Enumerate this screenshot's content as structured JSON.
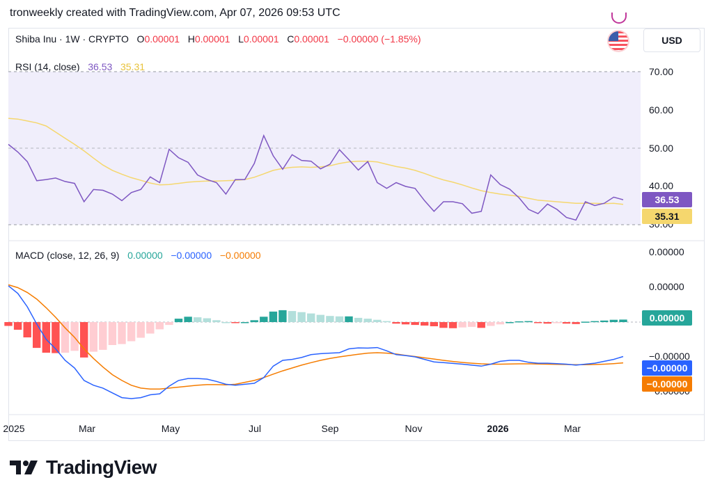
{
  "header": {
    "text": "tronweekly created with TradingView.com, Apr 07, 2026 09:53 UTC"
  },
  "symbol_line": {
    "name": "Shiba Inu · 1W · CRYPTO",
    "o_label": "O",
    "o_value": "0.00001",
    "h_label": "H",
    "h_value": "0.00001",
    "l_label": "L",
    "l_value": "0.00001",
    "c_label": "C",
    "c_value": "0.00001",
    "change": "−0.00000 (−1.85%)"
  },
  "currency_button": "USD",
  "rsi_legend": {
    "label": "RSI (14, close)",
    "rsi_value": "36.53",
    "ma_value": "35.31"
  },
  "macd_legend": {
    "label": "MACD (close, 12, 26, 9)",
    "hist_value": "0.00000",
    "macd_value": "−0.00000",
    "signal_value": "−0.00000"
  },
  "rsi_axis_ticks": [
    "70.00",
    "60.00",
    "50.00",
    "40.00",
    "30.00"
  ],
  "macd_axis_ticks": [
    "0.00000",
    "0.00000",
    "−0.00000",
    "−0.00000"
  ],
  "badges": {
    "rsi": "36.53",
    "rsi_ma": "35.31",
    "macd_hist": "0.00000",
    "macd_line": "−0.00000",
    "macd_signal": "−0.00000"
  },
  "x_axis_labels": [
    "2025",
    "Mar",
    "May",
    "Jul",
    "Sep",
    "Nov",
    "2026",
    "Mar"
  ],
  "logo_text": "TradingView",
  "colors": {
    "rsi_line": "#7e57c2",
    "rsi_ma": "#f5d76e",
    "rsi_band": "#f0eefb",
    "macd_line": "#2962ff",
    "signal_line": "#f57c00",
    "hist_pos_strong": "#26a69a",
    "hist_pos_weak": "#b2dfdb",
    "hist_neg_strong": "#ff5252",
    "hist_neg_weak": "#ffcdd2"
  },
  "chart_data": [
    {
      "type": "line",
      "title": "RSI (14, close)",
      "ylim": [
        30,
        70
      ],
      "x_range": [
        "2025-01",
        "2026-04"
      ],
      "series": [
        {
          "name": "RSI",
          "values": [
            51,
            49,
            46.5,
            41.5,
            41.8,
            42.2,
            41.3,
            40.8,
            36,
            39.2,
            39,
            38,
            36.3,
            38.4,
            39.2,
            42.5,
            41,
            49.7,
            47.5,
            46.3,
            43,
            41.8,
            41,
            38,
            41.8,
            41.8,
            46,
            53.3,
            48,
            44.5,
            48.3,
            46.8,
            46.6,
            44.6,
            45.8,
            49.6,
            47,
            44.3,
            46.5,
            41,
            39.5,
            41,
            40,
            39.5,
            36.3,
            33.5,
            36,
            36,
            35.5,
            33,
            33.5,
            43,
            40.5,
            39.3,
            37,
            34,
            32.9,
            35.4,
            34,
            31.9,
            31.2,
            36,
            35,
            35.6,
            37.2,
            36.53
          ]
        },
        {
          "name": "RSI-based MA",
          "values": [
            57.8,
            57.6,
            57.1,
            56.6,
            55.8,
            54.2,
            52.6,
            51,
            49.3,
            47.4,
            45.6,
            44.2,
            43.2,
            42.3,
            41.6,
            40.9,
            40.4,
            40.5,
            40.8,
            41.1,
            41.3,
            41.4,
            41.4,
            41.5,
            41.6,
            41.8,
            42.4,
            43.3,
            44.2,
            44.7,
            45,
            45.1,
            45,
            45.1,
            45.4,
            46,
            46.4,
            46.6,
            46.6,
            46.4,
            45.8,
            45.2,
            44.8,
            44.2,
            43.4,
            42.5,
            41.7,
            41.1,
            40.4,
            39.6,
            38.9,
            38.4,
            38,
            37.7,
            37.4,
            36.9,
            36.4,
            36.2,
            36,
            35.8,
            35.6,
            35.6,
            35.6,
            35.5,
            35.6,
            35.31
          ]
        }
      ]
    },
    {
      "type": "bar",
      "title": "MACD (close, 12, 26, 9)",
      "series": [
        {
          "name": "Histogram",
          "values": [
            -0.2,
            -0.4,
            -0.8,
            -1.35,
            -1.6,
            -1.62,
            -1.6,
            -1.5,
            -1.85,
            -1.55,
            -1.45,
            -1.2,
            -1.15,
            -1.0,
            -0.82,
            -0.6,
            -0.38,
            -0.15,
            0.18,
            0.28,
            0.25,
            0.2,
            0.1,
            0.0,
            -0.05,
            0.0,
            0.1,
            0.28,
            0.55,
            0.62,
            0.58,
            0.52,
            0.45,
            0.38,
            0.32,
            0.3,
            0.3,
            0.22,
            0.18,
            0.12,
            0.05,
            -0.08,
            -0.12,
            -0.15,
            -0.18,
            -0.22,
            -0.3,
            -0.32,
            -0.28,
            -0.25,
            -0.3,
            -0.2,
            -0.12,
            0.0,
            0.04,
            0.05,
            -0.05,
            -0.08,
            -0.06,
            -0.08,
            -0.1,
            0.02,
            0.05,
            0.08,
            0.12,
            0.13
          ]
        },
        {
          "name": "MACD",
          "values": [
            1.9,
            1.5,
            0.8,
            -0.1,
            -0.9,
            -1.4,
            -2.0,
            -2.4,
            -3.05,
            -3.3,
            -3.45,
            -3.7,
            -3.95,
            -4.0,
            -3.95,
            -3.8,
            -3.75,
            -3.35,
            -3.05,
            -2.95,
            -2.95,
            -2.98,
            -3.1,
            -3.25,
            -3.3,
            -3.25,
            -3.2,
            -2.9,
            -2.3,
            -2.0,
            -1.95,
            -1.85,
            -1.7,
            -1.65,
            -1.62,
            -1.6,
            -1.4,
            -1.35,
            -1.36,
            -1.33,
            -1.5,
            -1.7,
            -1.75,
            -1.82,
            -1.95,
            -2.08,
            -2.12,
            -2.16,
            -2.2,
            -2.25,
            -2.3,
            -2.2,
            -2.05,
            -2.0,
            -2.0,
            -2.1,
            -2.15,
            -2.15,
            -2.17,
            -2.2,
            -2.25,
            -2.2,
            -2.15,
            -2.05,
            -1.95,
            -1.8
          ]
        },
        {
          "name": "Signal",
          "values": [
            1.95,
            1.8,
            1.55,
            1.2,
            0.75,
            0.25,
            -0.3,
            -0.8,
            -1.4,
            -1.9,
            -2.35,
            -2.75,
            -3.05,
            -3.3,
            -3.45,
            -3.5,
            -3.5,
            -3.45,
            -3.4,
            -3.35,
            -3.3,
            -3.27,
            -3.27,
            -3.28,
            -3.25,
            -3.15,
            -3.05,
            -2.9,
            -2.72,
            -2.55,
            -2.4,
            -2.25,
            -2.12,
            -2.0,
            -1.9,
            -1.82,
            -1.75,
            -1.68,
            -1.62,
            -1.6,
            -1.62,
            -1.67,
            -1.74,
            -1.8,
            -1.87,
            -1.93,
            -2.0,
            -2.06,
            -2.11,
            -2.15,
            -2.18,
            -2.2,
            -2.2,
            -2.19,
            -2.18,
            -2.18,
            -2.19,
            -2.2,
            -2.21,
            -2.22,
            -2.23,
            -2.23,
            -2.22,
            -2.2,
            -2.17,
            -2.13
          ]
        }
      ]
    }
  ]
}
